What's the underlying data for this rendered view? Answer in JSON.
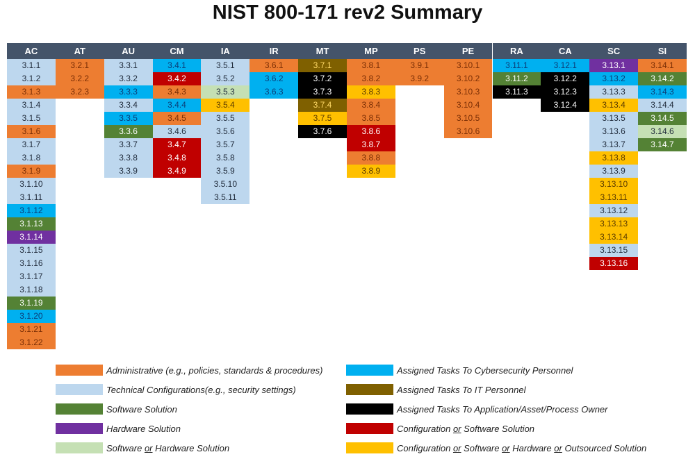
{
  "chart_data": {
    "type": "table",
    "title": "NIST 800-171 rev2 Summary",
    "colors": {
      "A": "#ed7d31",
      "T": "#bdd7ee",
      "S": "#548235",
      "H": "#7030a0",
      "SH": "#c5e0b4",
      "C": "#00b0f0",
      "I": "#7f6000",
      "O": "#000000",
      "R": "#c00000",
      "Y": "#ffc000"
    },
    "columns": [
      {
        "family": "AC",
        "cells": [
          [
            "3.1.1",
            "T"
          ],
          [
            "3.1.2",
            "T"
          ],
          [
            "3.1.3",
            "A"
          ],
          [
            "3.1.4",
            "T"
          ],
          [
            "3.1.5",
            "T"
          ],
          [
            "3.1.6",
            "A"
          ],
          [
            "3.1.7",
            "T"
          ],
          [
            "3.1.8",
            "T"
          ],
          [
            "3.1.9",
            "A"
          ],
          [
            "3.1.10",
            "T"
          ],
          [
            "3.1.11",
            "T"
          ],
          [
            "3.1.12",
            "C"
          ],
          [
            "3.1.13",
            "S"
          ],
          [
            "3.1.14",
            "H"
          ],
          [
            "3.1.15",
            "T"
          ],
          [
            "3.1.16",
            "T"
          ],
          [
            "3.1.17",
            "T"
          ],
          [
            "3.1.18",
            "T"
          ],
          [
            "3.1.19",
            "S"
          ],
          [
            "3.1.20",
            "C"
          ],
          [
            "3.1.21",
            "A"
          ],
          [
            "3.1.22",
            "A"
          ]
        ]
      },
      {
        "family": "AT",
        "cells": [
          [
            "3.2.1",
            "A"
          ],
          [
            "3.2.2",
            "A"
          ],
          [
            "3.2.3",
            "A"
          ]
        ]
      },
      {
        "family": "AU",
        "cells": [
          [
            "3.3.1",
            "T"
          ],
          [
            "3.3.2",
            "T"
          ],
          [
            "3.3.3",
            "C"
          ],
          [
            "3.3.4",
            "T"
          ],
          [
            "3.3.5",
            "C"
          ],
          [
            "3.3.6",
            "S"
          ],
          [
            "3.3.7",
            "T"
          ],
          [
            "3.3.8",
            "T"
          ],
          [
            "3.3.9",
            "T"
          ]
        ]
      },
      {
        "family": "CM",
        "cells": [
          [
            "3.4.1",
            "C"
          ],
          [
            "3.4.2",
            "R"
          ],
          [
            "3.4.3",
            "A"
          ],
          [
            "3.4.4",
            "C"
          ],
          [
            "3.4.5",
            "A"
          ],
          [
            "3.4.6",
            "T"
          ],
          [
            "3.4.7",
            "R"
          ],
          [
            "3.4.8",
            "R"
          ],
          [
            "3.4.9",
            "R"
          ]
        ]
      },
      {
        "family": "IA",
        "cells": [
          [
            "3.5.1",
            "T"
          ],
          [
            "3.5.2",
            "T"
          ],
          [
            "3.5.3",
            "SH"
          ],
          [
            "3.5.4",
            "Y"
          ],
          [
            "3.5.5",
            "T"
          ],
          [
            "3.5.6",
            "T"
          ],
          [
            "3.5.7",
            "T"
          ],
          [
            "3.5.8",
            "T"
          ],
          [
            "3.5.9",
            "T"
          ],
          [
            "3.5.10",
            "T"
          ],
          [
            "3.5.11",
            "T"
          ]
        ]
      },
      {
        "family": "IR",
        "cells": [
          [
            "3.6.1",
            "A"
          ],
          [
            "3.6.2",
            "C"
          ],
          [
            "3.6.3",
            "C"
          ]
        ]
      },
      {
        "family": "MT",
        "cells": [
          [
            "3.7.1",
            "I"
          ],
          [
            "3.7.2",
            "O"
          ],
          [
            "3.7.3",
            "O"
          ],
          [
            "3.7.4",
            "I"
          ],
          [
            "3.7.5",
            "Y"
          ],
          [
            "3.7.6",
            "O"
          ]
        ]
      },
      {
        "family": "MP",
        "cells": [
          [
            "3.8.1",
            "A"
          ],
          [
            "3.8.2",
            "A"
          ],
          [
            "3.8.3",
            "Y"
          ],
          [
            "3.8.4",
            "A"
          ],
          [
            "3.8.5",
            "A"
          ],
          [
            "3.8.6",
            "R"
          ],
          [
            "3.8.7",
            "R"
          ],
          [
            "3.8.8",
            "A"
          ],
          [
            "3.8.9",
            "Y"
          ]
        ]
      },
      {
        "family": "PS",
        "cells": [
          [
            "3.9.1",
            "A"
          ],
          [
            "3.9.2",
            "A"
          ]
        ]
      },
      {
        "family": "PE",
        "cells": [
          [
            "3.10.1",
            "A"
          ],
          [
            "3.10.2",
            "A"
          ],
          [
            "3.10.3",
            "A"
          ],
          [
            "3.10.4",
            "A"
          ],
          [
            "3.10.5",
            "A"
          ],
          [
            "3.10.6",
            "A"
          ]
        ]
      },
      {
        "family": "RA",
        "cells": [
          [
            "3.11.1",
            "C"
          ],
          [
            "3.11.2",
            "S"
          ],
          [
            "3.11.3",
            "O"
          ]
        ]
      },
      {
        "family": "CA",
        "cells": [
          [
            "3.12.1",
            "C"
          ],
          [
            "3.12.2",
            "O"
          ],
          [
            "3.12.3",
            "O"
          ],
          [
            "3.12.4",
            "O"
          ]
        ]
      },
      {
        "family": "SC",
        "cells": [
          [
            "3.13.1",
            "H"
          ],
          [
            "3.13.2",
            "C"
          ],
          [
            "3.13.3",
            "T"
          ],
          [
            "3.13.4",
            "Y"
          ],
          [
            "3.13.5",
            "T"
          ],
          [
            "3.13.6",
            "T"
          ],
          [
            "3.13.7",
            "T"
          ],
          [
            "3.13.8",
            "Y"
          ],
          [
            "3.13.9",
            "T"
          ],
          [
            "3.13.10",
            "Y"
          ],
          [
            "3.13.11",
            "Y"
          ],
          [
            "3.13.12",
            "T"
          ],
          [
            "3.13.13",
            "Y"
          ],
          [
            "3.13.14",
            "Y"
          ],
          [
            "3.13.15",
            "T"
          ],
          [
            "3.13.16",
            "R"
          ]
        ]
      },
      {
        "family": "SI",
        "cells": [
          [
            "3.14.1",
            "A"
          ],
          [
            "3.14.2",
            "S"
          ],
          [
            "3.14.3",
            "C"
          ],
          [
            "3.14.4",
            "T"
          ],
          [
            "3.14.5",
            "S"
          ],
          [
            "3.14.6",
            "SH"
          ],
          [
            "3.14.7",
            "S"
          ]
        ]
      }
    ],
    "legend": [
      {
        "key": "A",
        "label": "Administrative (e.g., policies, standards & procedures)"
      },
      {
        "key": "T",
        "label": "Technical  Configurations(e.g., security settings)"
      },
      {
        "key": "S",
        "label": "Software Solution"
      },
      {
        "key": "H",
        "label": "Hardware Solution"
      },
      {
        "key": "SH",
        "label": "Software or Hardware Solution"
      },
      {
        "key": "C",
        "label": "Assigned Tasks To Cybersecurity Personnel"
      },
      {
        "key": "I",
        "label": "Assigned Tasks To IT Personnel"
      },
      {
        "key": "O",
        "label": "Assigned Tasks To Application/Asset/Process Owner"
      },
      {
        "key": "R",
        "label": "Configuration or Software Solution"
      },
      {
        "key": "Y",
        "label": "Configuration or Software or Hardware or Outsourced Solution"
      }
    ]
  }
}
